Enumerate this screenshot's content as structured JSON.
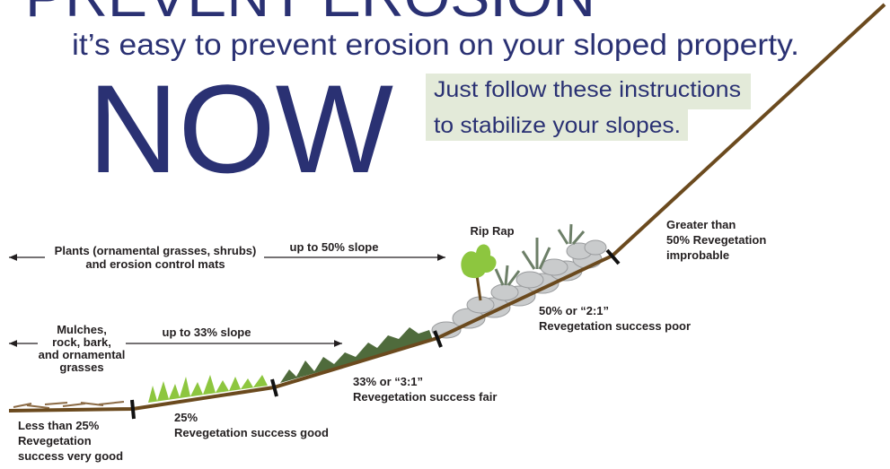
{
  "header": {
    "title": "PREVENT EROSION",
    "subtitle": "it’s easy to prevent erosion on your sloped property.",
    "emphasis": "NOW",
    "instructions": [
      "Just follow these instructions",
      "to stabilize your slopes."
    ]
  },
  "ranges": [
    {
      "label": [
        "Plants (ornamental grasses, shrubs)",
        "and erosion control mats"
      ],
      "extent": "up to 50% slope"
    },
    {
      "label": [
        "Mulches,",
        "rock, bark,",
        "and ornamental",
        "grasses"
      ],
      "extent": "up to 33% slope"
    }
  ],
  "rip_rap": "Rip Rap",
  "zones": [
    {
      "lines": [
        "Less than 25%",
        "Revegetation",
        "success very good"
      ]
    },
    {
      "lines": [
        "25%",
        "Revegetation success good"
      ]
    },
    {
      "lines": [
        "33% or “3:1”",
        "Revegetation success fair"
      ]
    },
    {
      "lines": [
        "50% or “2:1”",
        "Revegetation success poor"
      ]
    },
    {
      "lines": [
        "Greater than",
        "50% Revegetation",
        "improbable"
      ]
    }
  ]
}
